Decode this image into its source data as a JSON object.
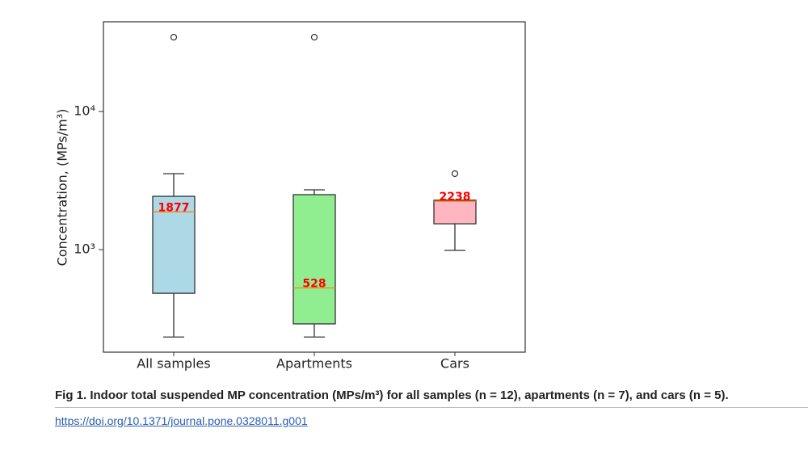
{
  "chart_data": {
    "type": "box",
    "y_label": "Concentration, (MPs/m³)",
    "categories": [
      "All samples",
      "Apartments",
      "Cars"
    ],
    "boxes": [
      {
        "whislo": 233,
        "q1": 483,
        "med": 1877,
        "q3": 2432,
        "whishi": 3548,
        "fliers": [
          34500
        ],
        "color": "#add8e6"
      },
      {
        "whislo": 233,
        "q1": 290,
        "med": 528,
        "q3": 2500,
        "whishi": 2710,
        "fliers": [
          34500
        ],
        "color": "#90ee90"
      },
      {
        "whislo": 987,
        "q1": 1538,
        "med": 2238,
        "q3": 2280,
        "whishi": 2280,
        "fliers": [
          3548
        ],
        "color": "#ffb6c1"
      }
    ],
    "median_color": "#ff7f0e",
    "median_label_color": "#ff0000",
    "log_scale": true,
    "ylim": [
      181,
      44600
    ],
    "yticks": [
      {
        "value": 1000,
        "label": "10³"
      },
      {
        "value": 10000,
        "label": "10⁴"
      }
    ]
  },
  "caption": {
    "label": "Fig 1.",
    "text": "Indoor total suspended MP concentration (MPs/m³) for all samples (n = 12), apartments (n = 7), and cars (n = 5).",
    "link": "https://doi.org/10.1371/journal.pone.0328011.g001"
  }
}
